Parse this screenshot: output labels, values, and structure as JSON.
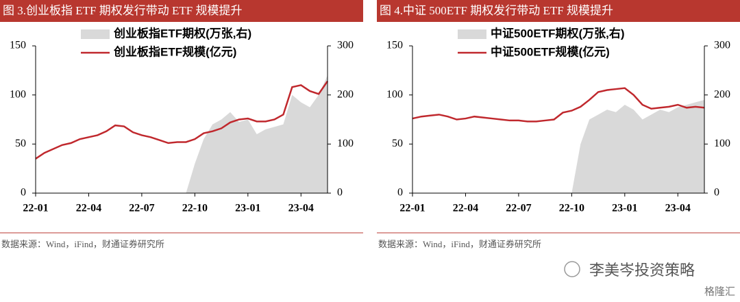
{
  "chart_data": [
    {
      "type": "line",
      "title": "图 3.创业板指 ETF 期权发行带动 ETF 规模提升",
      "source": "数据来源：Wind，iFind，财通证券研究所",
      "categories": [
        "22-01",
        null,
        null,
        null,
        null,
        null,
        "22-04",
        null,
        null,
        null,
        null,
        null,
        "22-07",
        null,
        null,
        null,
        null,
        null,
        "22-10",
        null,
        null,
        null,
        null,
        null,
        "23-01",
        null,
        null,
        null,
        null,
        null,
        "23-04",
        null,
        null,
        null
      ],
      "ylim": [
        0,
        150
      ],
      "yticks": [
        0,
        50,
        100,
        150
      ],
      "y2lim": [
        0,
        300
      ],
      "y2ticks": [
        0,
        100,
        200,
        300
      ],
      "series": [
        {
          "name": "创业板指ETF期权(万张,右)",
          "color": "#d9d9d9",
          "axis": "y2",
          "kind": "area",
          "values": [
            0,
            0,
            0,
            0,
            0,
            0,
            0,
            0,
            0,
            0,
            0,
            0,
            0,
            0,
            0,
            0,
            0,
            0,
            60,
            110,
            140,
            150,
            165,
            145,
            150,
            120,
            130,
            135,
            140,
            200,
            185,
            175,
            200,
            240
          ]
        },
        {
          "name": "创业板指ETF规模(亿元)",
          "color": "#c0282d",
          "kind": "line",
          "values": [
            35,
            41,
            45,
            49,
            51,
            55,
            57,
            59,
            63,
            69,
            68,
            62,
            59,
            57,
            54,
            51,
            52,
            52,
            55,
            61,
            63,
            66,
            72,
            75,
            76,
            73,
            73,
            75,
            80,
            108,
            110,
            104,
            101,
            114
          ]
        }
      ]
    },
    {
      "type": "line",
      "title": "图 4.中证 500ETF 期权发行带动 ETF 规模提升",
      "source": "数据来源：Wind，iFind，财通证券研究所",
      "categories": [
        "22-01",
        null,
        null,
        null,
        null,
        null,
        "22-04",
        null,
        null,
        null,
        null,
        null,
        "22-07",
        null,
        null,
        null,
        null,
        null,
        "22-10",
        null,
        null,
        null,
        null,
        null,
        "23-01",
        null,
        null,
        null,
        null,
        null,
        "23-04",
        null,
        null,
        null
      ],
      "ylim": [
        0,
        150
      ],
      "yticks": [
        0,
        50,
        100,
        150
      ],
      "y2lim": [
        0,
        300
      ],
      "y2ticks": [
        0,
        100,
        200,
        300
      ],
      "series": [
        {
          "name": "中证500ETF期权(万张,右)",
          "color": "#d9d9d9",
          "axis": "y2",
          "kind": "area",
          "values": [
            0,
            0,
            0,
            0,
            0,
            0,
            0,
            0,
            0,
            0,
            0,
            0,
            0,
            0,
            0,
            0,
            0,
            0,
            0,
            100,
            150,
            160,
            170,
            165,
            180,
            170,
            150,
            160,
            170,
            165,
            175,
            180,
            185,
            190
          ]
        },
        {
          "name": "中证500ETF规模(亿元)",
          "color": "#c0282d",
          "kind": "line",
          "values": [
            76,
            78,
            79,
            80,
            78,
            75,
            76,
            78,
            77,
            76,
            75,
            74,
            74,
            73,
            73,
            74,
            75,
            82,
            84,
            88,
            95,
            103,
            105,
            106,
            107,
            100,
            90,
            86,
            87,
            88,
            90,
            87,
            88,
            87
          ]
        }
      ]
    }
  ],
  "watermark": "李美岑投资策略",
  "logo": "格隆汇"
}
